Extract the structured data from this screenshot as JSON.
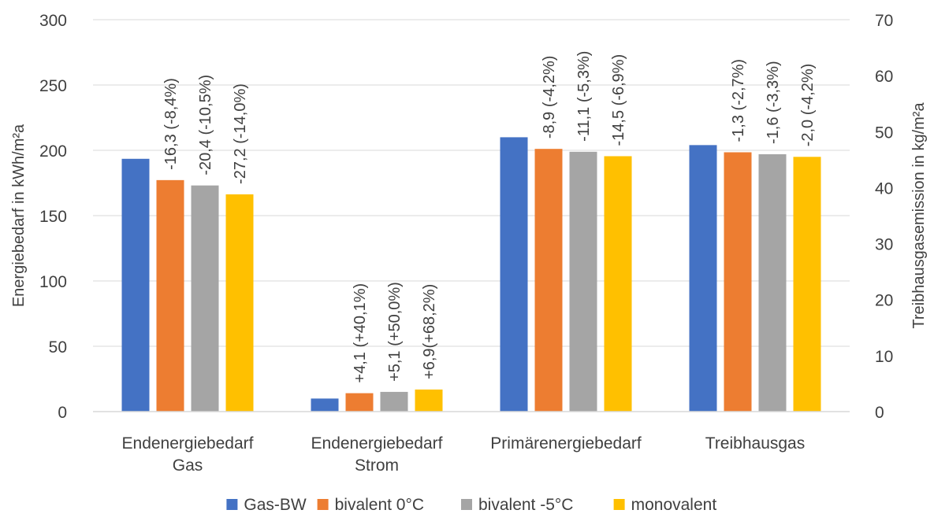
{
  "chart_data": {
    "type": "bar",
    "categories": [
      [
        "Endenergiebedarf",
        "Gas"
      ],
      [
        "Endenergiebedarf",
        "Strom"
      ],
      [
        "Primärenergiebedarf"
      ],
      [
        "Treibhausgas"
      ]
    ],
    "series": [
      {
        "name": "Gas-BW",
        "color": "#4472C4",
        "values": [
          193.5,
          10,
          210,
          204
        ]
      },
      {
        "name": "bivalent 0°C",
        "color": "#ED7D31",
        "values": [
          177.2,
          14.1,
          201.1,
          198.5
        ]
      },
      {
        "name": "bivalent -5°C",
        "color": "#A5A5A5",
        "values": [
          173.1,
          15.1,
          198.9,
          197
        ]
      },
      {
        "name": "monovalent",
        "color": "#FFC000",
        "values": [
          166.3,
          16.9,
          195.5,
          195
        ]
      }
    ],
    "data_labels": [
      [
        "",
        "-16,3 (-8,4%)",
        "-20,4 (-10,5%)",
        "-27,2 (-14,0%)"
      ],
      [
        "",
        "+4,1 (+40,1%)",
        "+5,1 (+50,0%)",
        "+6,9(+68,2%)"
      ],
      [
        "",
        "-8,9 (-4,2%)",
        "-11,1 (-5,3%)",
        "-14,5 (-6,9%)"
      ],
      [
        "",
        "-1,3 (-2,7%)",
        "-1,6 (-3,3%)",
        "-2,0 (-4,2%)"
      ]
    ],
    "ylabel": "Energiebedarf in kWh/m²a",
    "y2label": "Treibhausgasemission  in kg/m²a",
    "ylim": [
      0,
      300
    ],
    "y2lim": [
      0,
      70
    ],
    "yticks": [
      "0",
      "50",
      "100",
      "150",
      "200",
      "250",
      "300"
    ],
    "y2ticks": [
      "0",
      "10",
      "20",
      "30",
      "40",
      "50",
      "60",
      "70"
    ],
    "grid": true,
    "legend_position": "bottom"
  }
}
